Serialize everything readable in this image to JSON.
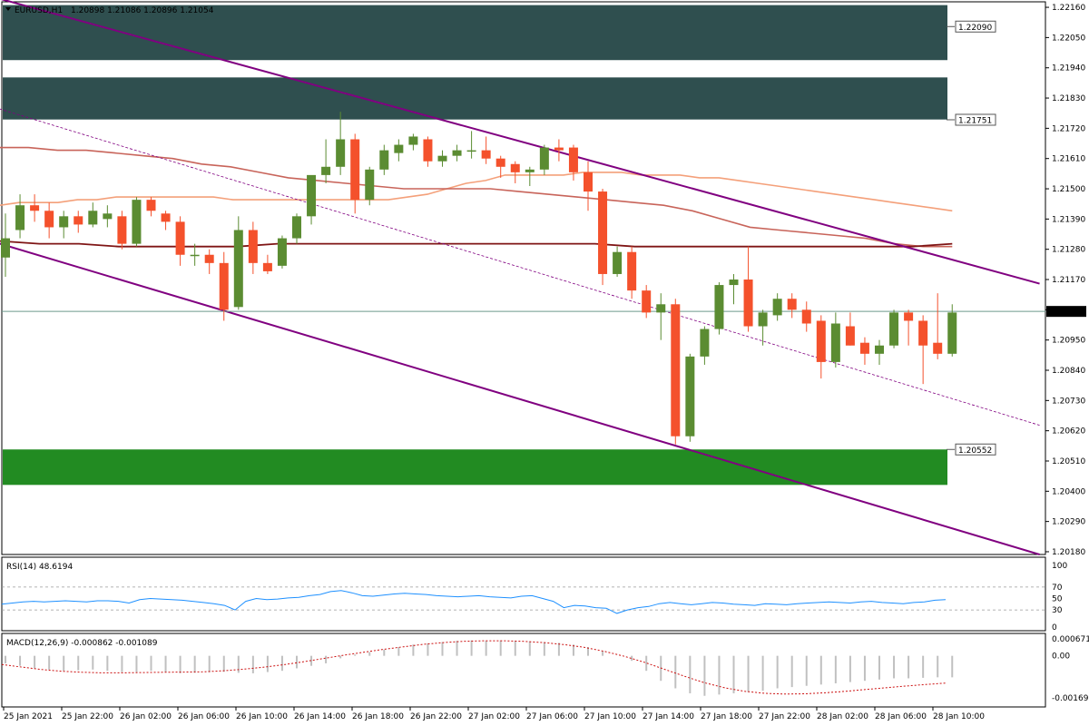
{
  "header": {
    "symbol": "EURUSD,H1",
    "ohlc": "1.20898 1.21086 1.20896 1.21054"
  },
  "rsi_header": "RSI(14) 48.6194",
  "macd_header": "MACD(12,26,9) -0.000862 -0.001089",
  "colors": {
    "bull": "#5b8c32",
    "bear": "#f4512c",
    "zone_dark": "#2f4f4f",
    "zone_green": "#228b22",
    "channel": "#800080",
    "ma_fast": "#f4a07a",
    "ma_mid": "#c8645a",
    "ma_slow": "#7f1515",
    "rsi_line": "#1e90ff",
    "macd_signal": "#cc1010",
    "macd_hist": "#c0c0c0",
    "current_line": "#6e9a8c"
  },
  "chart_data": [
    {
      "type": "candlestick",
      "title": "EURUSD,H1",
      "y_ticks": [
        "1.22160",
        "1.22050",
        "1.21940",
        "1.21830",
        "1.21720",
        "1.21610",
        "1.21500",
        "1.21390",
        "1.21280",
        "1.21170",
        "1.21060",
        "1.20950",
        "1.20840",
        "1.20730",
        "1.20620",
        "1.20510",
        "1.20400",
        "1.20290",
        "1.20180"
      ],
      "ylim": [
        1.2017,
        1.2218
      ],
      "x_labels": [
        "25 Jan 2021",
        "25 Jan 22:00",
        "26 Jan 02:00",
        "26 Jan 06:00",
        "26 Jan 10:00",
        "26 Jan 14:00",
        "26 Jan 18:00",
        "26 Jan 22:00",
        "27 Jan 02:00",
        "27 Jan 06:00",
        "27 Jan 10:00",
        "27 Jan 14:00",
        "27 Jan 18:00",
        "27 Jan 22:00",
        "28 Jan 02:00",
        "28 Jan 06:00",
        "28 Jan 10:00"
      ],
      "price_labels": [
        {
          "value": 1.2209,
          "text": "1.22090"
        },
        {
          "value": 1.21751,
          "text": "1.21751"
        },
        {
          "value": 1.20552,
          "text": "1.20552"
        }
      ],
      "current_price": {
        "value": 1.21054,
        "text": "1.21054"
      },
      "zones": [
        {
          "name": "resistance-upper",
          "from": 1.21968,
          "to": 1.22168
        },
        {
          "name": "resistance-lower",
          "from": 1.21752,
          "to": 1.21905
        },
        {
          "name": "support",
          "from": 1.20423,
          "to": 1.20552
        }
      ],
      "candles": [
        {
          "o": 1.2125,
          "h": 1.2141,
          "l": 1.2118,
          "c": 1.2132
        },
        {
          "o": 1.2135,
          "h": 1.2148,
          "l": 1.2132,
          "c": 1.2144
        },
        {
          "o": 1.2144,
          "h": 1.2148,
          "l": 1.2138,
          "c": 1.2142
        },
        {
          "o": 1.2142,
          "h": 1.2145,
          "l": 1.2132,
          "c": 1.2136
        },
        {
          "o": 1.2136,
          "h": 1.2142,
          "l": 1.2132,
          "c": 1.214
        },
        {
          "o": 1.214,
          "h": 1.2142,
          "l": 1.2134,
          "c": 1.2137
        },
        {
          "o": 1.2137,
          "h": 1.2145,
          "l": 1.2136,
          "c": 1.2142
        },
        {
          "o": 1.2139,
          "h": 1.2144,
          "l": 1.2136,
          "c": 1.2141
        },
        {
          "o": 1.214,
          "h": 1.2142,
          "l": 1.2128,
          "c": 1.213
        },
        {
          "o": 1.213,
          "h": 1.2147,
          "l": 1.2129,
          "c": 1.2146
        },
        {
          "o": 1.2146,
          "h": 1.2147,
          "l": 1.214,
          "c": 1.2142
        },
        {
          "o": 1.2141,
          "h": 1.2142,
          "l": 1.2135,
          "c": 1.2138
        },
        {
          "o": 1.2138,
          "h": 1.214,
          "l": 1.2122,
          "c": 1.2126
        },
        {
          "o": 1.2126,
          "h": 1.213,
          "l": 1.2122,
          "c": 1.2126
        },
        {
          "o": 1.2126,
          "h": 1.2128,
          "l": 1.2119,
          "c": 1.2123
        },
        {
          "o": 1.2123,
          "h": 1.2127,
          "l": 1.2102,
          "c": 1.2106
        },
        {
          "o": 1.2107,
          "h": 1.214,
          "l": 1.2106,
          "c": 1.2135
        },
        {
          "o": 1.2135,
          "h": 1.2138,
          "l": 1.2119,
          "c": 1.2123
        },
        {
          "o": 1.2123,
          "h": 1.2126,
          "l": 1.2119,
          "c": 1.212
        },
        {
          "o": 1.2122,
          "h": 1.2133,
          "l": 1.2121,
          "c": 1.2132
        },
        {
          "o": 1.2132,
          "h": 1.2141,
          "l": 1.213,
          "c": 1.214
        },
        {
          "o": 1.214,
          "h": 1.2154,
          "l": 1.2137,
          "c": 1.2155
        },
        {
          "o": 1.2155,
          "h": 1.2168,
          "l": 1.2152,
          "c": 1.2158
        },
        {
          "o": 1.2158,
          "h": 1.2178,
          "l": 1.2155,
          "c": 1.2168
        },
        {
          "o": 1.2168,
          "h": 1.217,
          "l": 1.2141,
          "c": 1.2146
        },
        {
          "o": 1.2146,
          "h": 1.2158,
          "l": 1.2144,
          "c": 1.2157
        },
        {
          "o": 1.2157,
          "h": 1.2166,
          "l": 1.2155,
          "c": 1.2164
        },
        {
          "o": 1.2163,
          "h": 1.2168,
          "l": 1.216,
          "c": 1.2166
        },
        {
          "o": 1.2166,
          "h": 1.217,
          "l": 1.2164,
          "c": 1.2169
        },
        {
          "o": 1.2168,
          "h": 1.2169,
          "l": 1.2158,
          "c": 1.216
        },
        {
          "o": 1.216,
          "h": 1.2164,
          "l": 1.2158,
          "c": 1.2162
        },
        {
          "o": 1.2162,
          "h": 1.2166,
          "l": 1.216,
          "c": 1.2164
        },
        {
          "o": 1.2164,
          "h": 1.2171,
          "l": 1.2161,
          "c": 1.2164
        },
        {
          "o": 1.2164,
          "h": 1.2169,
          "l": 1.2159,
          "c": 1.2161
        },
        {
          "o": 1.2161,
          "h": 1.2162,
          "l": 1.2154,
          "c": 1.2158
        },
        {
          "o": 1.2159,
          "h": 1.216,
          "l": 1.2152,
          "c": 1.2156
        },
        {
          "o": 1.2156,
          "h": 1.2158,
          "l": 1.2151,
          "c": 1.2157
        },
        {
          "o": 1.2157,
          "h": 1.2166,
          "l": 1.2155,
          "c": 1.2165
        },
        {
          "o": 1.2165,
          "h": 1.2168,
          "l": 1.216,
          "c": 1.2164
        },
        {
          "o": 1.2165,
          "h": 1.2166,
          "l": 1.2153,
          "c": 1.2156
        },
        {
          "o": 1.2156,
          "h": 1.216,
          "l": 1.2142,
          "c": 1.2149
        },
        {
          "o": 1.2149,
          "h": 1.215,
          "l": 1.2115,
          "c": 1.2119
        },
        {
          "o": 1.2119,
          "h": 1.2129,
          "l": 1.2118,
          "c": 1.2127
        },
        {
          "o": 1.2127,
          "h": 1.2129,
          "l": 1.211,
          "c": 1.2113
        },
        {
          "o": 1.2113,
          "h": 1.2115,
          "l": 1.2103,
          "c": 1.2105
        },
        {
          "o": 1.2105,
          "h": 1.2112,
          "l": 1.2095,
          "c": 1.2108
        },
        {
          "o": 1.2108,
          "h": 1.211,
          "l": 1.2057,
          "c": 1.206
        },
        {
          "o": 1.206,
          "h": 1.209,
          "l": 1.2058,
          "c": 1.2089
        },
        {
          "o": 1.2089,
          "h": 1.21,
          "l": 1.2086,
          "c": 1.2099
        },
        {
          "o": 1.2099,
          "h": 1.2116,
          "l": 1.2097,
          "c": 1.2115
        },
        {
          "o": 1.2115,
          "h": 1.2119,
          "l": 1.2108,
          "c": 1.2117
        },
        {
          "o": 1.2117,
          "h": 1.2129,
          "l": 1.2098,
          "c": 1.21
        },
        {
          "o": 1.21,
          "h": 1.2106,
          "l": 1.2093,
          "c": 1.2105
        },
        {
          "o": 1.2104,
          "h": 1.2112,
          "l": 1.2102,
          "c": 1.211
        },
        {
          "o": 1.211,
          "h": 1.2112,
          "l": 1.2103,
          "c": 1.2106
        },
        {
          "o": 1.2106,
          "h": 1.2109,
          "l": 1.2098,
          "c": 1.2101
        },
        {
          "o": 1.2102,
          "h": 1.2104,
          "l": 1.2081,
          "c": 1.2087
        },
        {
          "o": 1.2087,
          "h": 1.2105,
          "l": 1.2085,
          "c": 1.2101
        },
        {
          "o": 1.21,
          "h": 1.2105,
          "l": 1.2093,
          "c": 1.2093
        },
        {
          "o": 1.2094,
          "h": 1.2096,
          "l": 1.2086,
          "c": 1.209
        },
        {
          "o": 1.209,
          "h": 1.2095,
          "l": 1.2086,
          "c": 1.2093
        },
        {
          "o": 1.2093,
          "h": 1.2106,
          "l": 1.2092,
          "c": 1.2105
        },
        {
          "o": 1.2105,
          "h": 1.2106,
          "l": 1.2093,
          "c": 1.2102
        },
        {
          "o": 1.2102,
          "h": 1.2104,
          "l": 1.2079,
          "c": 1.2093
        },
        {
          "o": 1.2094,
          "h": 1.2112,
          "l": 1.2088,
          "c": 1.209
        },
        {
          "o": 1.209,
          "h": 1.2108,
          "l": 1.2089,
          "c": 1.2105
        }
      ],
      "ma_fast": [
        1.2144,
        1.2145,
        1.2145,
        1.2145,
        1.2146,
        1.2146,
        1.2147,
        1.2147,
        1.2147,
        1.2147,
        1.2147,
        1.2147,
        1.2146,
        1.2146,
        1.2146,
        1.2146,
        1.2146,
        1.2146,
        1.2146,
        1.2146,
        1.2146,
        1.2147,
        1.2148,
        1.215,
        1.2152,
        1.2153,
        1.2155,
        1.2155,
        1.2155,
        1.2155,
        1.2156,
        1.2156,
        1.2156,
        1.2155,
        1.2155,
        1.2155,
        1.2154,
        1.2154,
        1.2153,
        1.2152,
        1.2151,
        1.215,
        1.2149,
        1.2148,
        1.2147,
        1.2146,
        1.2145,
        1.2144,
        1.2143,
        1.2142
      ],
      "ma_mid": [
        1.2165,
        1.2165,
        1.2164,
        1.2164,
        1.2163,
        1.2162,
        1.2161,
        1.2159,
        1.2158,
        1.2156,
        1.2154,
        1.2153,
        1.2152,
        1.2151,
        1.215,
        1.215,
        1.215,
        1.215,
        1.2149,
        1.2148,
        1.2147,
        1.2146,
        1.2145,
        1.2144,
        1.2142,
        1.2139,
        1.2136,
        1.2135,
        1.2134,
        1.2133,
        1.2132,
        1.213,
        1.2129,
        1.2129
      ],
      "ma_slow": [
        1.2131,
        1.213,
        1.213,
        1.2129,
        1.2129,
        1.2129,
        1.2129,
        1.213,
        1.213,
        1.213,
        1.213,
        1.213,
        1.213,
        1.213,
        1.213,
        1.213,
        1.2129,
        1.2129,
        1.2129,
        1.2129,
        1.2129,
        1.2129,
        1.2129,
        1.2129,
        1.213
      ],
      "channel_upper": [
        {
          "i": -1,
          "v": 1.222
        },
        {
          "i": 71,
          "v": 1.21155
        }
      ],
      "channel_lower": [
        {
          "i": -1,
          "v": 1.2131
        },
        {
          "i": 71,
          "v": 1.2017
        }
      ],
      "midline_dotted": [
        {
          "i": -1,
          "v": 1.218
        },
        {
          "i": 71,
          "v": 1.2064
        }
      ]
    },
    {
      "type": "line",
      "title": "RSI(14) 48.6194",
      "y_ticks": [
        "70",
        "50",
        "30",
        "0"
      ],
      "top_label": "100",
      "ylim": [
        0,
        100
      ],
      "levels": [
        70,
        30
      ],
      "values": [
        40,
        42,
        44,
        45,
        44,
        45,
        46,
        45,
        44,
        46,
        46,
        45,
        42,
        48,
        50,
        49,
        48,
        47,
        45,
        43,
        41,
        38,
        30,
        45,
        50,
        48,
        49,
        51,
        52,
        55,
        57,
        62,
        64,
        60,
        55,
        54,
        56,
        58,
        59,
        58,
        57,
        55,
        54,
        53,
        54,
        55,
        53,
        52,
        51,
        54,
        55,
        50,
        45,
        34,
        38,
        37,
        34,
        33,
        24,
        30,
        34,
        36,
        41,
        43,
        41,
        39,
        41,
        43,
        42,
        40,
        39,
        38,
        41,
        40,
        39,
        41,
        42,
        43,
        44,
        43,
        42,
        44,
        45,
        43,
        42,
        41,
        43,
        44,
        47,
        48
      ]
    },
    {
      "type": "bar",
      "title": "MACD(12,26,9) -0.000862 -0.001089",
      "y_ticks": [
        "0.000671",
        "0.00",
        "-0.00169"
      ],
      "ylim": [
        -0.0019,
        0.00075
      ],
      "histogram": [
        -0.0003,
        -0.0004,
        -0.0005,
        -0.00055,
        -0.0006,
        -0.00058,
        -0.00055,
        -0.0006,
        -0.00065,
        -0.00065,
        -0.0006,
        -0.00065,
        -0.0007,
        -0.00068,
        -0.00066,
        -0.00064,
        -0.00068,
        -0.0007,
        -0.00065,
        -0.0006,
        -0.0005,
        -0.0004,
        -0.0003,
        -0.0001,
        5e-05,
        0.00015,
        0.00025,
        0.00035,
        0.00045,
        0.0005,
        0.00055,
        0.0006,
        0.00062,
        0.0006,
        0.00062,
        0.0006,
        0.00058,
        0.00055,
        0.00052,
        0.00045,
        0.00035,
        0.0002,
        0.0,
        -0.0002,
        -0.0006,
        -0.001,
        -0.0013,
        -0.0015,
        -0.0016,
        -0.00155,
        -0.0015,
        -0.00145,
        -0.0014,
        -0.0013,
        -0.00125,
        -0.0012,
        -0.00115,
        -0.0011,
        -0.00105,
        -0.001,
        -0.00095,
        -0.0009,
        -0.0009,
        -0.00088,
        -0.00086,
        -0.00086
      ],
      "signal": [
        -0.00035,
        -0.00045,
        -0.00055,
        -0.00062,
        -0.00066,
        -0.00068,
        -0.00068,
        -0.00067,
        -0.00066,
        -0.00065,
        -0.00064,
        -0.0006,
        -0.00054,
        -0.00046,
        -0.00036,
        -0.00024,
        -0.00011,
        2e-05,
        0.00014,
        0.00026,
        0.00036,
        0.00046,
        0.00053,
        0.00058,
        0.0006,
        0.0006,
        0.00058,
        0.00053,
        0.00045,
        0.00034,
        0.00018,
        -2e-05,
        -0.00026,
        -0.00054,
        -0.00082,
        -0.00108,
        -0.00128,
        -0.00142,
        -0.0015,
        -0.00153,
        -0.00152,
        -0.00148,
        -0.00142,
        -0.00135,
        -0.00128,
        -0.00121,
        -0.00115,
        -0.00109
      ]
    }
  ]
}
